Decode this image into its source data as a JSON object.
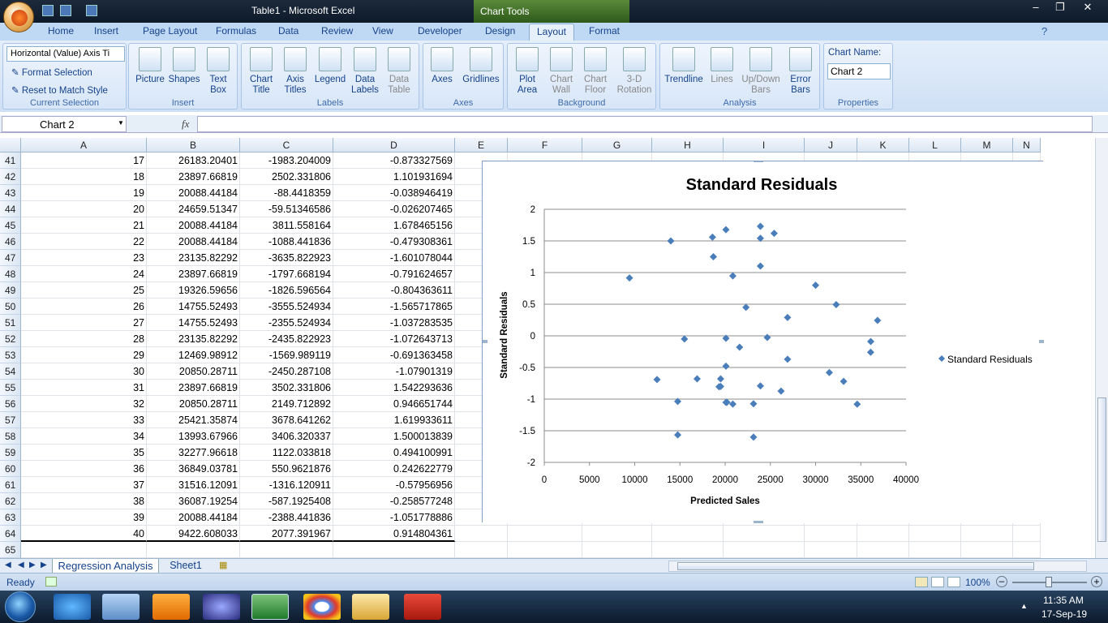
{
  "window": {
    "title": "Table1 - Microsoft Excel",
    "chart_tools": "Chart Tools"
  },
  "tabs": [
    "Home",
    "Insert",
    "Page Layout",
    "Formulas",
    "Data",
    "Review",
    "View",
    "Developer",
    "Design",
    "Layout",
    "Format"
  ],
  "ribbon": {
    "current_selection": {
      "dropdown": "Horizontal (Value) Axis Ti",
      "format_selection": "Format Selection",
      "reset": "Reset to Match Style",
      "label": "Current Selection"
    },
    "insert": {
      "picture": "Picture",
      "shapes": "Shapes",
      "text_box_1": "Text",
      "text_box_2": "Box",
      "label": "Insert"
    },
    "labels": {
      "chart_title": [
        "Chart",
        "Title"
      ],
      "axis_titles": [
        "Axis",
        "Titles"
      ],
      "legend": [
        "Legend",
        ""
      ],
      "data_labels": [
        "Data",
        "Labels"
      ],
      "data_table": [
        "Data",
        "Table"
      ],
      "label": "Labels"
    },
    "axes": {
      "axes": "Axes",
      "gridlines": "Gridlines",
      "label": "Axes"
    },
    "background": {
      "plot_area": [
        "Plot",
        "Area"
      ],
      "chart_wall": [
        "Chart",
        "Wall"
      ],
      "chart_floor": [
        "Chart",
        "Floor"
      ],
      "rotation": [
        "3-D",
        "Rotation"
      ],
      "label": "Background"
    },
    "analysis": {
      "trendline": "Trendline",
      "lines": "Lines",
      "updown": [
        "Up/Down",
        "Bars"
      ],
      "error": [
        "Error",
        "Bars"
      ],
      "label": "Analysis"
    },
    "properties": {
      "chart_name_label": "Chart Name:",
      "chart_name": "Chart 2",
      "label": "Properties"
    }
  },
  "formula_bar": {
    "name_box": "Chart 2",
    "fx": "fx",
    "content": ""
  },
  "columns": [
    "A",
    "B",
    "C",
    "D",
    "E",
    "F",
    "G",
    "H",
    "I",
    "J",
    "K",
    "L",
    "M",
    "N"
  ],
  "rows": [
    {
      "r": "41",
      "a": "17",
      "b": "26183.20401",
      "c": "-1983.204009",
      "d": "-0.873327569"
    },
    {
      "r": "42",
      "a": "18",
      "b": "23897.66819",
      "c": "2502.331806",
      "d": "1.101931694"
    },
    {
      "r": "43",
      "a": "19",
      "b": "20088.44184",
      "c": "-88.4418359",
      "d": "-0.038946419"
    },
    {
      "r": "44",
      "a": "20",
      "b": "24659.51347",
      "c": "-59.51346586",
      "d": "-0.026207465"
    },
    {
      "r": "45",
      "a": "21",
      "b": "20088.44184",
      "c": "3811.558164",
      "d": "1.678465156"
    },
    {
      "r": "46",
      "a": "22",
      "b": "20088.44184",
      "c": "-1088.441836",
      "d": "-0.479308361"
    },
    {
      "r": "47",
      "a": "23",
      "b": "23135.82292",
      "c": "-3635.822923",
      "d": "-1.601078044"
    },
    {
      "r": "48",
      "a": "24",
      "b": "23897.66819",
      "c": "-1797.668194",
      "d": "-0.791624657"
    },
    {
      "r": "49",
      "a": "25",
      "b": "19326.59656",
      "c": "-1826.596564",
      "d": "-0.804363611"
    },
    {
      "r": "50",
      "a": "26",
      "b": "14755.52493",
      "c": "-3555.524934",
      "d": "-1.565717865"
    },
    {
      "r": "51",
      "a": "27",
      "b": "14755.52493",
      "c": "-2355.524934",
      "d": "-1.037283535"
    },
    {
      "r": "52",
      "a": "28",
      "b": "23135.82292",
      "c": "-2435.822923",
      "d": "-1.072643713"
    },
    {
      "r": "53",
      "a": "29",
      "b": "12469.98912",
      "c": "-1569.989119",
      "d": "-0.691363458"
    },
    {
      "r": "54",
      "a": "30",
      "b": "20850.28711",
      "c": "-2450.287108",
      "d": "-1.07901319"
    },
    {
      "r": "55",
      "a": "31",
      "b": "23897.66819",
      "c": "3502.331806",
      "d": "1.542293636"
    },
    {
      "r": "56",
      "a": "32",
      "b": "20850.28711",
      "c": "2149.712892",
      "d": "0.946651744"
    },
    {
      "r": "57",
      "a": "33",
      "b": "25421.35874",
      "c": "3678.641262",
      "d": "1.619933611"
    },
    {
      "r": "58",
      "a": "34",
      "b": "13993.67966",
      "c": "3406.320337",
      "d": "1.500013839"
    },
    {
      "r": "59",
      "a": "35",
      "b": "32277.96618",
      "c": "1122.033818",
      "d": "0.494100991"
    },
    {
      "r": "60",
      "a": "36",
      "b": "36849.03781",
      "c": "550.9621876",
      "d": "0.242622779"
    },
    {
      "r": "61",
      "a": "37",
      "b": "31516.12091",
      "c": "-1316.120911",
      "d": "-0.57956956"
    },
    {
      "r": "62",
      "a": "38",
      "b": "36087.19254",
      "c": "-587.1925408",
      "d": "-0.258577248"
    },
    {
      "r": "63",
      "a": "39",
      "b": "20088.44184",
      "c": "-2388.441836",
      "d": "-1.051778886"
    },
    {
      "r": "64",
      "a": "40",
      "b": "9422.608033",
      "c": "2077.391967",
      "d": "0.914804361"
    },
    {
      "r": "65",
      "a": "",
      "b": "",
      "c": "",
      "d": ""
    }
  ],
  "sheets": {
    "active": "Regression Analysis",
    "other": "Sheet1"
  },
  "status": {
    "ready": "Ready",
    "zoom": "100%"
  },
  "clock": {
    "time": "11:35 AM",
    "date": "17-Sep-19"
  },
  "chart_data": {
    "type": "scatter",
    "title": "Standard Residuals",
    "xlabel": "Predicted Sales",
    "ylabel": "Standard Residuals",
    "xlim": [
      0,
      40000
    ],
    "ylim": [
      -2,
      2
    ],
    "xticks": [
      "0",
      "5000",
      "10000",
      "15000",
      "20000",
      "25000",
      "30000",
      "35000",
      "40000"
    ],
    "yticks": [
      "2",
      "1.5",
      "1",
      "0.5",
      "0",
      "-0.5",
      "-1",
      "-1.5",
      "-2"
    ],
    "grid": "horizontal",
    "legend": "right",
    "series": [
      {
        "name": "Standard Residuals",
        "color": "#4a7ebb",
        "points": [
          [
            26183.2,
            -0.873
          ],
          [
            23897.67,
            1.102
          ],
          [
            20088.44,
            -0.039
          ],
          [
            24659.51,
            -0.026
          ],
          [
            20088.44,
            1.678
          ],
          [
            20088.44,
            -0.479
          ],
          [
            23135.82,
            -1.601
          ],
          [
            23897.67,
            -0.792
          ],
          [
            19326.6,
            -0.804
          ],
          [
            14755.52,
            -1.566
          ],
          [
            14755.52,
            -1.037
          ],
          [
            23135.82,
            -1.073
          ],
          [
            12469.99,
            -0.691
          ],
          [
            20850.29,
            -1.079
          ],
          [
            23897.67,
            1.542
          ],
          [
            20850.29,
            0.947
          ],
          [
            25421.36,
            1.62
          ],
          [
            13993.68,
            1.5
          ],
          [
            32277.97,
            0.494
          ],
          [
            36849.04,
            0.243
          ],
          [
            31516.12,
            -0.58
          ],
          [
            36087.19,
            -0.259
          ],
          [
            20088.44,
            -1.052
          ],
          [
            9422.61,
            0.915
          ],
          [
            18600,
            1.56
          ],
          [
            18700,
            1.25
          ],
          [
            23900,
            1.73
          ],
          [
            30000,
            0.8
          ],
          [
            26900,
            0.29
          ],
          [
            22300,
            0.45
          ],
          [
            36100,
            -0.09
          ],
          [
            33100,
            -0.72
          ],
          [
            34600,
            -1.08
          ],
          [
            26900,
            -0.37
          ],
          [
            21600,
            -0.18
          ],
          [
            19500,
            -0.68
          ],
          [
            19500,
            -0.8
          ],
          [
            16900,
            -0.68
          ],
          [
            15500,
            -0.05
          ],
          [
            20200,
            -1.05
          ]
        ]
      }
    ]
  }
}
